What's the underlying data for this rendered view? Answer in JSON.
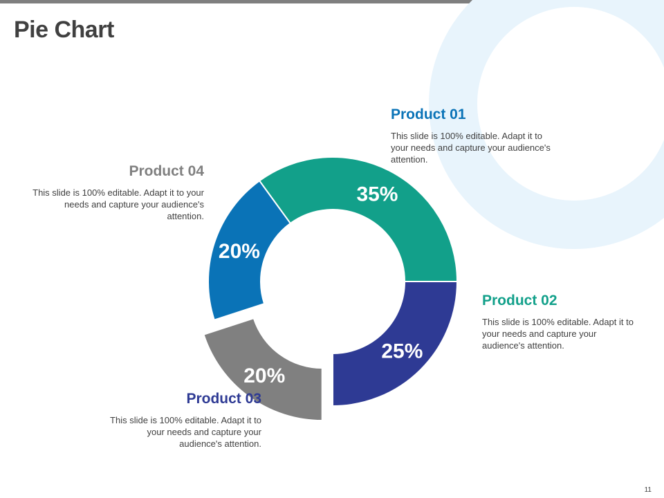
{
  "slide": {
    "title": "Pie Chart",
    "page_number": "11"
  },
  "colors": {
    "p1": "#0A73B7",
    "p2": "#12A08A",
    "p3": "#2E3A94",
    "p4": "#808080",
    "deco": "#E8F4FC"
  },
  "chart_data": {
    "type": "pie",
    "style": "donut",
    "categories": [
      "Product 01",
      "Product 02",
      "Product 03",
      "Product 04"
    ],
    "values": [
      20,
      35,
      25,
      20
    ],
    "labels": [
      "20%",
      "35%",
      "25%",
      "20%"
    ],
    "exploded": [
      false,
      false,
      false,
      true
    ]
  },
  "products": [
    {
      "name": "Product 01",
      "desc": "This slide is 100% editable. Adapt it to your needs and capture your audience's attention."
    },
    {
      "name": "Product 02",
      "desc": "This slide is 100% editable. Adapt it to your needs and capture your audience's attention."
    },
    {
      "name": "Product 03",
      "desc": "This slide is 100% editable. Adapt it to your needs and capture your audience's attention."
    },
    {
      "name": "Product 04",
      "desc": "This slide is 100% editable. Adapt it to your needs and capture your audience's attention."
    }
  ]
}
